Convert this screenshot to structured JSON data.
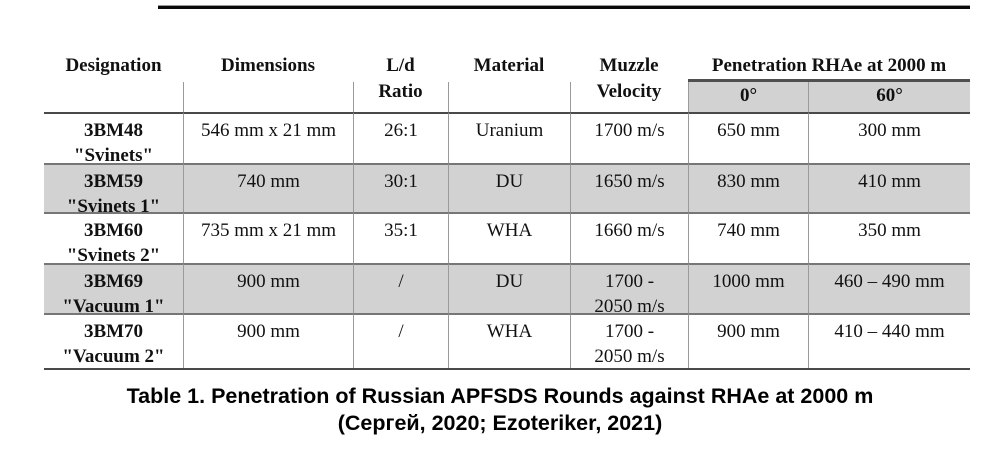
{
  "table": {
    "header": {
      "designation": "Designation",
      "dimensions": "Dimensions",
      "ld_ratio": "L/d\nRatio",
      "material": "Material",
      "muzzle_velocity": "Muzzle\nVelocity",
      "penetration": "Penetration RHAe at 2000 m",
      "deg0": "0°",
      "deg60": "60°"
    },
    "rows": [
      {
        "shaded": false,
        "cells": [
          "3BM48\n\"Svinets\"",
          "546 mm x 21 mm",
          "26:1",
          "Uranium",
          "1700 m/s",
          "650 mm",
          "300 mm"
        ]
      },
      {
        "shaded": true,
        "cells": [
          "3BM59\n\"Svinets 1\"",
          "740 mm",
          "30:1",
          "DU",
          "1650 m/s",
          "830 mm",
          "410 mm"
        ]
      },
      {
        "shaded": false,
        "cells": [
          "3BM60\n\"Svinets 2\"",
          "735 mm x 21 mm",
          "35:1",
          "WHA",
          "1660 m/s",
          "740 mm",
          "350 mm"
        ]
      },
      {
        "shaded": true,
        "cells": [
          "3BM69\n\"Vacuum 1\"",
          "900 mm",
          "/",
          "DU",
          "1700 -\n2050 m/s",
          "1000 mm",
          "460 – 490 mm"
        ]
      },
      {
        "shaded": false,
        "cells": [
          "3BM70\n\"Vacuum 2\"",
          "900 mm",
          "/",
          "WHA",
          "1700 -\n2050 m/s",
          "900 mm",
          "410 – 440 mm"
        ]
      }
    ]
  },
  "caption": {
    "line1": "Table 1. Penetration of Russian APFSDS Rounds against RHAe at 2000 m",
    "line2": "(Сергей, 2020; Ezoteriker, 2021)"
  },
  "colors": {
    "row_shade": "#d2d2d2",
    "border_light": "#9a9a9a",
    "border_dark": "#4a4a4a",
    "text": "#111111"
  }
}
